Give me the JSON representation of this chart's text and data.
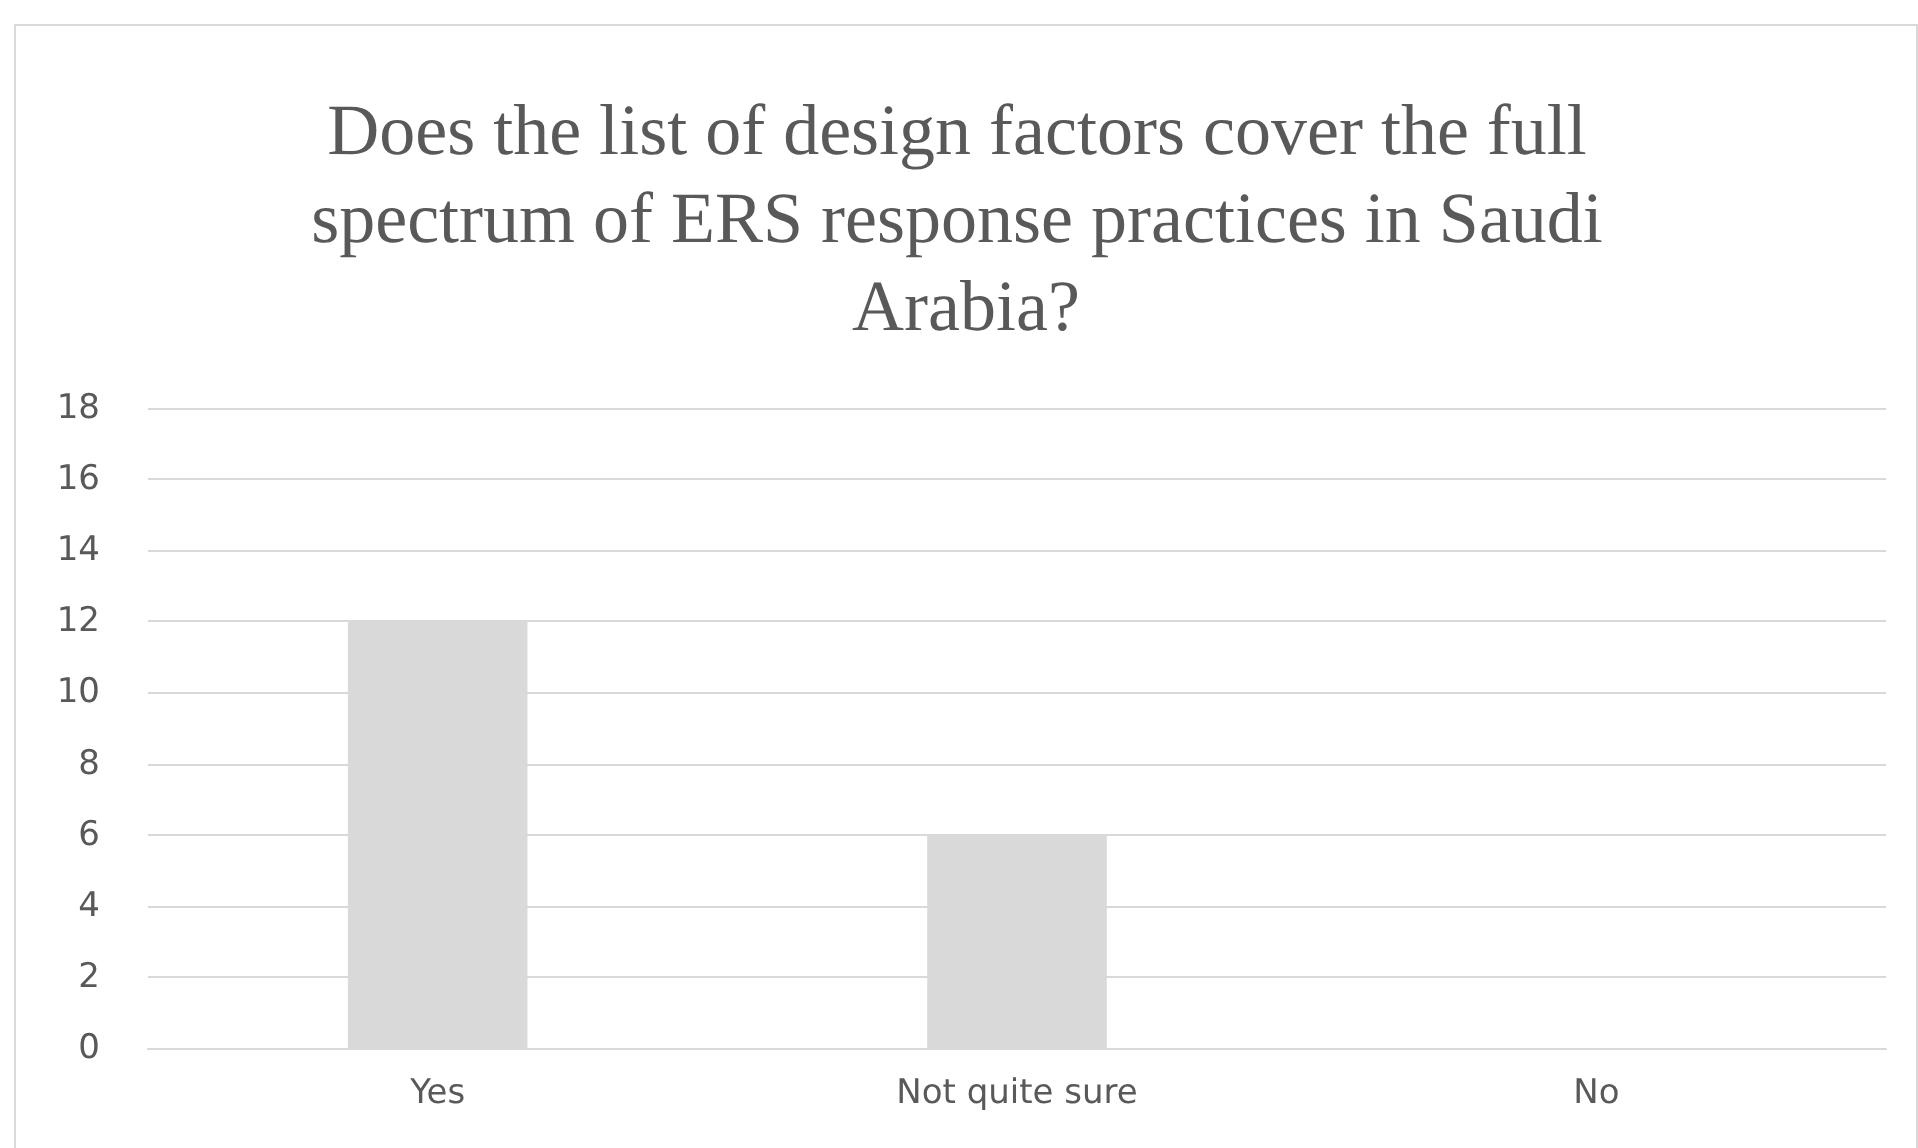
{
  "chart_data": {
    "type": "bar",
    "title": "Does the list of design factors cover the full spectrum of ERS response practices in Saudi Arabia?",
    "categories": [
      "Yes",
      "Not quite sure",
      "No"
    ],
    "values": [
      12,
      6,
      0
    ],
    "color": "#d9d9d9",
    "ylim": [
      0,
      18
    ],
    "yticks": [
      0,
      2,
      4,
      6,
      8,
      10,
      12,
      14,
      16,
      18
    ],
    "grid": "y"
  }
}
